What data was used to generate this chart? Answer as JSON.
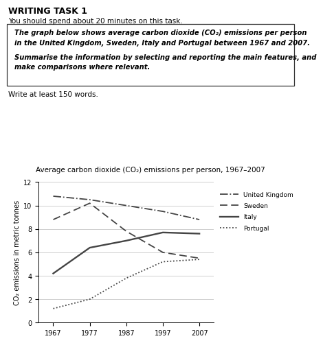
{
  "title_chart": "Average carbon dioxide (CO₂) emissions per person, 1967–2007",
  "ylabel": "CO₂ emissions in metric tonnes",
  "years": [
    1967,
    1977,
    1987,
    1997,
    2007
  ],
  "uk": [
    10.8,
    10.5,
    10.0,
    9.5,
    8.8
  ],
  "sweden": [
    8.8,
    10.2,
    7.8,
    6.0,
    5.5
  ],
  "italy": [
    4.2,
    6.4,
    7.0,
    7.7,
    7.6
  ],
  "portugal": [
    1.2,
    2.0,
    3.8,
    5.2,
    5.4
  ],
  "ylim": [
    0,
    12
  ],
  "yticks": [
    0,
    2,
    4,
    6,
    8,
    10,
    12
  ],
  "xticks": [
    1967,
    1977,
    1987,
    1997,
    2007
  ],
  "header_title": "WRITING TASK 1",
  "header_sub": "You should spend about 20 minutes on this task.",
  "box_line1": "The graph below shows average carbon dioxide (CO₂) emissions per person",
  "box_line2": "in the United Kingdom, Sweden, Italy and Portugal between 1967 and 2007.",
  "box_line3": "Summarise the information by selecting and reporting the main features, and",
  "box_line4": "make comparisons where relevant.",
  "footer_text": "Write at least 150 words.",
  "legend_labels": [
    "United Kingdom",
    "Sweden",
    "Italy",
    "Portugal"
  ],
  "bg_color": "#ffffff",
  "line_color": "#444444",
  "grid_color": "#bbbbbb"
}
